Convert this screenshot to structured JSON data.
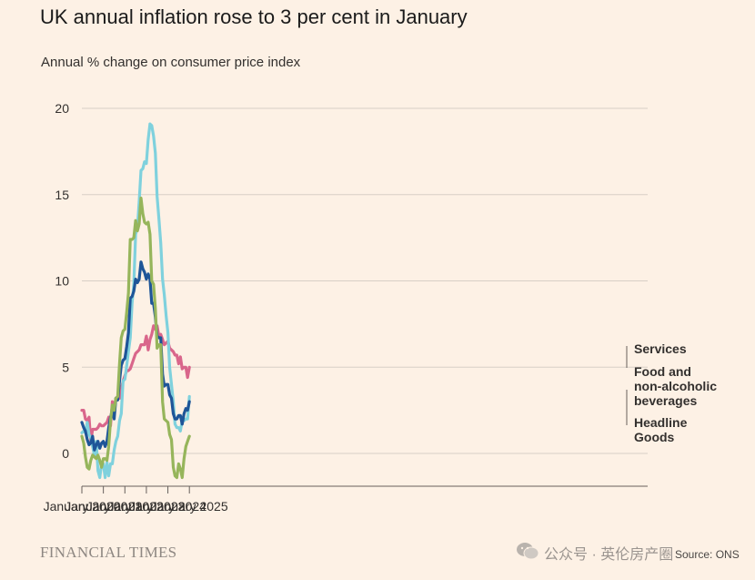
{
  "title": "UK annual inflation rose to 3 per cent in January",
  "subtitle": "Annual % change on consumer price index",
  "brand": "FINANCIAL TIMES",
  "watermark": "公众号 · 英伦房产圈",
  "source": "Source: ONS",
  "chart_data": {
    "type": "line",
    "title": "UK annual inflation rose to 3 per cent in January",
    "subtitle": "Annual % change on consumer price index",
    "xlabel": "",
    "ylabel": "",
    "ylim": [
      -2,
      20
    ],
    "yticks": [
      "0",
      "5",
      "10",
      "15",
      "20"
    ],
    "xticks": [
      "January 2020",
      "January 2021",
      "January 2022",
      "January 2023",
      "January 2024",
      "January 2025"
    ],
    "grid": true,
    "legend": "direct labels at right end of lines",
    "x": [
      "2020-01",
      "2020-02",
      "2020-03",
      "2020-04",
      "2020-05",
      "2020-06",
      "2020-07",
      "2020-08",
      "2020-09",
      "2020-10",
      "2020-11",
      "2020-12",
      "2021-01",
      "2021-02",
      "2021-03",
      "2021-04",
      "2021-05",
      "2021-06",
      "2021-07",
      "2021-08",
      "2021-09",
      "2021-10",
      "2021-11",
      "2021-12",
      "2022-01",
      "2022-02",
      "2022-03",
      "2022-04",
      "2022-05",
      "2022-06",
      "2022-07",
      "2022-08",
      "2022-09",
      "2022-10",
      "2022-11",
      "2022-12",
      "2023-01",
      "2023-02",
      "2023-03",
      "2023-04",
      "2023-05",
      "2023-06",
      "2023-07",
      "2023-08",
      "2023-09",
      "2023-10",
      "2023-11",
      "2023-12",
      "2024-01",
      "2024-02",
      "2024-03",
      "2024-04",
      "2024-05",
      "2024-06",
      "2024-07",
      "2024-08",
      "2024-09",
      "2024-10",
      "2024-11",
      "2024-12",
      "2025-01"
    ],
    "series": [
      {
        "name": "Services",
        "color": "#d9668b",
        "values": [
          2.5,
          2.5,
          2.0,
          1.9,
          2.1,
          0.7,
          1.4,
          1.4,
          1.4,
          1.5,
          1.7,
          1.6,
          1.6,
          1.7,
          1.8,
          2.1,
          1.6,
          3.0,
          2.6,
          3.2,
          3.3,
          3.2,
          3.7,
          4.2,
          4.5,
          4.8,
          4.8,
          4.9,
          5.2,
          5.5,
          5.8,
          5.9,
          6.0,
          6.3,
          6.3,
          6.3,
          6.8,
          6.0,
          6.6,
          6.9,
          7.4,
          7.2,
          7.4,
          6.8,
          6.9,
          6.6,
          6.3,
          6.4,
          6.5,
          6.1,
          6.0,
          5.9,
          5.7,
          5.7,
          5.2,
          5.6,
          4.9,
          5.0,
          5.0,
          4.4,
          5.0
        ]
      },
      {
        "name": "Food and non-alcoholic beverages",
        "color": "#7fd1dd",
        "values": [
          1.2,
          1.3,
          1.2,
          1.8,
          1.1,
          0.9,
          0.4,
          -0.1,
          0.7,
          -1.0,
          -1.4,
          -0.6,
          -0.6,
          -1.4,
          -0.5,
          -1.3,
          -0.6,
          -0.6,
          0.2,
          0.7,
          1.0,
          1.9,
          2.3,
          4.2,
          4.3,
          5.1,
          5.9,
          6.7,
          8.7,
          9.8,
          12.7,
          13.1,
          14.6,
          16.4,
          16.5,
          16.9,
          16.8,
          18.2,
          19.1,
          19.0,
          18.4,
          17.4,
          14.9,
          13.6,
          12.2,
          10.1,
          9.2,
          8.0,
          7.0,
          5.0,
          4.0,
          3.0,
          1.7,
          1.5,
          1.5,
          1.3,
          1.9,
          1.9,
          2.0,
          2.0,
          3.3
        ]
      },
      {
        "name": "Headline",
        "color": "#1e5598",
        "values": [
          1.8,
          1.5,
          1.3,
          0.8,
          0.5,
          0.6,
          1.0,
          0.2,
          0.5,
          0.7,
          0.3,
          0.6,
          0.7,
          0.4,
          0.7,
          1.5,
          2.1,
          2.5,
          2.0,
          3.2,
          3.1,
          4.2,
          5.1,
          5.4,
          5.5,
          6.2,
          7.0,
          9.0,
          9.1,
          9.4,
          10.1,
          9.9,
          10.1,
          11.1,
          10.7,
          10.5,
          10.1,
          10.4,
          10.1,
          8.7,
          8.7,
          7.9,
          6.8,
          6.7,
          6.7,
          4.6,
          3.9,
          4.0,
          4.0,
          3.4,
          3.2,
          2.3,
          2.0,
          2.0,
          2.2,
          2.2,
          1.7,
          2.3,
          2.6,
          2.5,
          3.0
        ]
      },
      {
        "name": "Goods",
        "color": "#96b55b",
        "values": [
          1.0,
          0.6,
          -0.2,
          -0.8,
          -0.9,
          -0.4,
          -0.1,
          -0.2,
          -0.3,
          -0.1,
          -0.4,
          -0.8,
          -0.3,
          -0.3,
          -0.4,
          0.4,
          1.9,
          2.8,
          2.5,
          3.2,
          3.3,
          5.2,
          6.7,
          7.1,
          7.2,
          8.2,
          9.3,
          12.4,
          12.4,
          12.5,
          13.5,
          12.9,
          13.3,
          14.8,
          13.9,
          13.4,
          13.3,
          13.4,
          12.7,
          10.0,
          9.8,
          8.4,
          6.1,
          6.3,
          6.3,
          3.0,
          2.0,
          1.9,
          1.8,
          1.1,
          0.8,
          -0.8,
          -1.3,
          -1.4,
          -0.6,
          -0.9,
          -1.4,
          -0.3,
          0.4,
          0.7,
          1.0
        ]
      }
    ],
    "labels": [
      "Services",
      "Food and",
      "non-alcoholic",
      "beverages",
      "Headline",
      "Goods"
    ]
  }
}
